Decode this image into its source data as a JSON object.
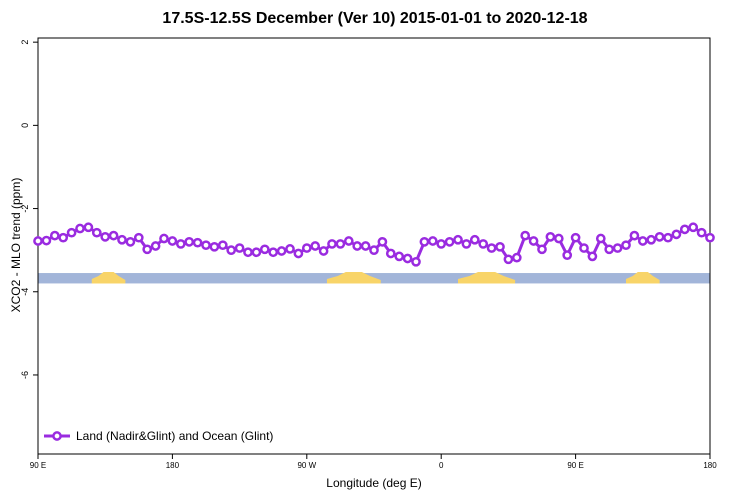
{
  "chart_data": {
    "type": "line",
    "title": "17.5S-12.5S December (Ver 10)   2015-01-01 to 2020-12-18",
    "xlabel": "Longitude (deg E)",
    "ylabel": "XCO2 - MLO trend (ppm)",
    "xlim": [
      0,
      100
    ],
    "ylim": [
      -7.9,
      2.1
    ],
    "x_ticks": [
      {
        "pos": 0,
        "label": "90 E"
      },
      {
        "pos": 20,
        "label": "180"
      },
      {
        "pos": 40,
        "label": "90 W"
      },
      {
        "pos": 60,
        "label": "0"
      },
      {
        "pos": 80,
        "label": "90 E"
      },
      {
        "pos": 100,
        "label": "180"
      }
    ],
    "y_ticks": [
      2,
      0,
      -2,
      -4,
      -6
    ],
    "y_tick_labels": [
      "2",
      "0",
      "-2",
      "-4",
      "-6"
    ],
    "grid": false,
    "legend_position": "bottom-left",
    "series": [
      {
        "name": "Land (Nadir&Glint) and Ocean (Glint)",
        "color": "#9a2be0",
        "x": [
          0,
          1.25,
          2.5,
          3.75,
          5,
          6.25,
          7.5,
          8.75,
          10,
          11.25,
          12.5,
          13.75,
          15,
          16.25,
          17.5,
          18.75,
          20,
          21.25,
          22.5,
          23.75,
          25,
          26.25,
          27.5,
          28.75,
          30,
          31.25,
          32.5,
          33.75,
          35,
          36.25,
          37.5,
          38.75,
          40,
          41.25,
          42.5,
          43.75,
          45,
          46.25,
          47.5,
          48.75,
          50,
          51.25,
          52.5,
          53.75,
          55,
          56.25,
          57.5,
          58.75,
          60,
          61.25,
          62.5,
          63.75,
          65,
          66.25,
          67.5,
          68.75,
          70,
          71.25,
          72.5,
          73.75,
          75,
          76.25,
          77.5,
          78.75,
          80,
          81.25,
          82.5,
          83.75,
          85,
          86.25,
          87.5,
          88.75,
          90,
          91.25,
          92.5,
          93.75,
          95,
          96.25,
          97.5,
          98.75,
          100
        ],
        "y": [
          -2.78,
          -2.77,
          -2.65,
          -2.7,
          -2.58,
          -2.48,
          -2.45,
          -2.58,
          -2.68,
          -2.65,
          -2.75,
          -2.8,
          -2.7,
          -2.98,
          -2.9,
          -2.72,
          -2.78,
          -2.85,
          -2.8,
          -2.82,
          -2.88,
          -2.92,
          -2.88,
          -3.0,
          -2.95,
          -3.05,
          -3.05,
          -2.98,
          -3.05,
          -3.02,
          -2.97,
          -3.08,
          -2.95,
          -2.9,
          -3.02,
          -2.85,
          -2.85,
          -2.78,
          -2.9,
          -2.9,
          -3.0,
          -2.8,
          -3.08,
          -3.15,
          -3.2,
          -3.28,
          -2.8,
          -2.78,
          -2.85,
          -2.8,
          -2.75,
          -2.85,
          -2.75,
          -2.85,
          -2.95,
          -2.92,
          -3.22,
          -3.18,
          -2.65,
          -2.78,
          -2.98,
          -2.68,
          -2.72,
          -3.12,
          -2.7,
          -2.95,
          -3.15,
          -2.72,
          -2.98,
          -2.95,
          -2.88,
          -2.65,
          -2.78,
          -2.75,
          -2.68,
          -2.7,
          -2.62,
          -2.5,
          -2.45,
          -2.58,
          -2.7
        ]
      }
    ],
    "land_ocean_strip": {
      "y_range": [
        -3.55,
        -3.8
      ],
      "ocean_color": "#a2b5d9",
      "land_color": "#f8d468",
      "land_segments": [
        [
          8.0,
          13.0
        ],
        [
          43.0,
          51.0
        ],
        [
          62.5,
          71.0
        ],
        [
          87.5,
          92.5
        ]
      ]
    }
  }
}
